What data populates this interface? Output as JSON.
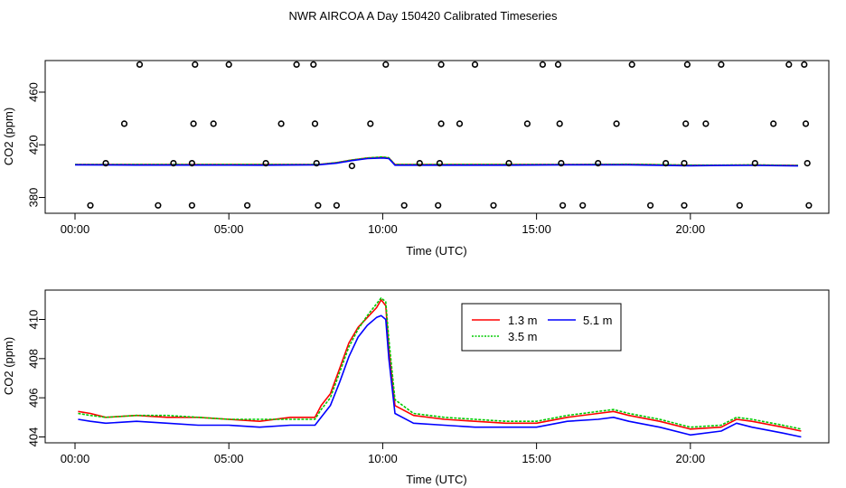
{
  "title": "NWR AIRCOA A  Day 150420  Calibrated Timeseries",
  "colors": {
    "red": "#ff0000",
    "green": "#00cc00",
    "blue": "#0000ff",
    "axis": "#000000"
  },
  "chart_data": [
    {
      "type": "scatter",
      "xlabel": "Time (UTC)",
      "ylabel": "CO2 (ppm)",
      "xlim": [
        0,
        24
      ],
      "ylim": [
        368,
        484
      ],
      "xticks": [
        0,
        5,
        10,
        15,
        20
      ],
      "xtick_labels": [
        "00:00",
        "05:00",
        "10:00",
        "15:00",
        "20:00"
      ],
      "yticks": [
        380,
        420,
        460
      ],
      "ytick_labels": [
        "380",
        "420",
        "460"
      ],
      "series": [
        {
          "color": "red",
          "x": [
            0,
            2,
            4,
            6,
            7.9,
            8.5,
            9.0,
            9.5,
            10.0,
            10.2,
            10.4,
            12,
            14,
            16,
            18,
            20,
            21,
            22,
            23.5
          ],
          "y": [
            405,
            405,
            405,
            405,
            405,
            406.5,
            408.5,
            410,
            410.5,
            410,
            405,
            405,
            405,
            405,
            405.2,
            404.5,
            404.5,
            404.7,
            404.3
          ]
        },
        {
          "color": "green",
          "x": [
            0,
            2,
            4,
            6,
            7.9,
            8.5,
            9.0,
            9.5,
            10.0,
            10.2,
            10.4,
            12,
            14,
            16,
            18,
            20,
            21,
            22,
            23.5
          ],
          "y": [
            405,
            405,
            405,
            405,
            405,
            406.5,
            408.5,
            410,
            410.8,
            410.2,
            405,
            405,
            405,
            405,
            405.3,
            404.6,
            404.6,
            404.8,
            404.3
          ]
        },
        {
          "color": "blue",
          "x": [
            0,
            2,
            4,
            6,
            7.9,
            8.5,
            9.0,
            9.5,
            10.0,
            10.2,
            10.4,
            12,
            14,
            16,
            18,
            20,
            21,
            22,
            23.5
          ],
          "y": [
            404.8,
            404.6,
            404.6,
            404.5,
            404.8,
            406,
            408,
            409.5,
            410,
            409.5,
            404.5,
            404.5,
            404.5,
            404.8,
            404.8,
            404.1,
            404.3,
            404.4,
            404.0
          ]
        }
      ],
      "points": {
        "x": [
          0.5,
          1.0,
          1.6,
          2.1,
          2.7,
          3.2,
          3.8,
          3.8,
          3.85,
          3.9,
          4.5,
          5.0,
          5.6,
          6.2,
          6.7,
          7.2,
          7.75,
          7.8,
          7.85,
          7.9,
          8.5,
          9.0,
          9.6,
          10.1,
          10.7,
          11.2,
          11.8,
          11.85,
          11.9,
          11.9,
          12.5,
          13.0,
          13.6,
          14.1,
          14.7,
          15.2,
          15.7,
          15.75,
          15.8,
          15.85,
          16.5,
          17.0,
          17.6,
          18.1,
          18.7,
          19.2,
          19.8,
          19.8,
          19.85,
          19.9,
          20.5,
          21.0,
          21.6,
          22.1,
          22.7,
          23.2,
          23.7,
          23.75,
          23.8,
          23.85
        ],
        "y": [
          374,
          406,
          436,
          481,
          374,
          406,
          374,
          406,
          436,
          481,
          436,
          481,
          374,
          406,
          436,
          481,
          481,
          436,
          406,
          374,
          374,
          404,
          436,
          481,
          374,
          406,
          374,
          406,
          436,
          481,
          436,
          481,
          374,
          406,
          436,
          481,
          481,
          436,
          406,
          374,
          374,
          406,
          436,
          481,
          374,
          406,
          374,
          406,
          436,
          481,
          436,
          481,
          374,
          406,
          436,
          481,
          481,
          436,
          406,
          374
        ]
      }
    },
    {
      "type": "line",
      "xlabel": "Time (UTC)",
      "ylabel": "CO2 (ppm)",
      "xlim": [
        0,
        24
      ],
      "ylim": [
        403.7,
        411.5
      ],
      "xticks": [
        0,
        5,
        10,
        15,
        20
      ],
      "xtick_labels": [
        "00:00",
        "05:00",
        "10:00",
        "15:00",
        "20:00"
      ],
      "yticks": [
        404,
        406,
        408,
        410
      ],
      "ytick_labels": [
        "404",
        "406",
        "408",
        "410"
      ],
      "legend": {
        "placement": "top-right",
        "entries": [
          "1.3 m",
          "3.5 m",
          "5.1 m"
        ]
      },
      "series": [
        {
          "name": "1.3 m",
          "color": "red",
          "x": [
            0.1,
            0.5,
            1,
            2,
            3,
            4,
            5,
            6,
            7,
            7.8,
            8.0,
            8.3,
            8.6,
            8.9,
            9.2,
            9.5,
            9.8,
            9.95,
            10.1,
            10.2,
            10.4,
            11,
            12,
            13,
            14,
            15,
            16,
            17,
            17.5,
            18,
            19,
            20,
            21,
            21.5,
            22,
            23,
            23.6
          ],
          "y": [
            405.3,
            405.2,
            405.0,
            405.1,
            405.0,
            405.0,
            404.9,
            404.8,
            405.0,
            405.0,
            405.6,
            406.2,
            407.5,
            408.8,
            409.6,
            410.1,
            410.6,
            411.0,
            410.7,
            408.5,
            405.6,
            405.1,
            404.9,
            404.8,
            404.7,
            404.7,
            405.0,
            405.2,
            405.3,
            405.1,
            404.8,
            404.4,
            404.5,
            404.9,
            404.8,
            404.5,
            404.3
          ]
        },
        {
          "name": "3.5 m",
          "color": "green",
          "x": [
            0.1,
            0.5,
            1,
            2,
            3,
            4,
            5,
            6,
            7,
            7.8,
            8.0,
            8.3,
            8.6,
            8.9,
            9.2,
            9.5,
            9.8,
            9.95,
            10.1,
            10.2,
            10.4,
            11,
            12,
            13,
            14,
            15,
            16,
            17,
            17.5,
            18,
            19,
            20,
            21,
            21.5,
            22,
            23,
            23.6
          ],
          "y": [
            405.2,
            405.1,
            405.0,
            405.1,
            405.1,
            405.0,
            404.9,
            404.9,
            404.9,
            404.9,
            405.4,
            406.0,
            407.3,
            408.6,
            409.5,
            410.2,
            410.8,
            411.1,
            410.9,
            409.0,
            405.9,
            405.2,
            405.0,
            404.9,
            404.8,
            404.8,
            405.1,
            405.3,
            405.4,
            405.2,
            404.9,
            404.5,
            404.6,
            405.0,
            404.9,
            404.6,
            404.4
          ]
        },
        {
          "name": "5.1 m",
          "color": "blue",
          "x": [
            0.1,
            0.5,
            1,
            2,
            3,
            4,
            5,
            6,
            7,
            7.8,
            8.0,
            8.3,
            8.6,
            8.9,
            9.2,
            9.5,
            9.8,
            9.95,
            10.1,
            10.2,
            10.4,
            11,
            12,
            13,
            14,
            15,
            16,
            17,
            17.5,
            18,
            19,
            20,
            21,
            21.5,
            22,
            23,
            23.6
          ],
          "y": [
            404.9,
            404.8,
            404.7,
            404.8,
            404.7,
            404.6,
            404.6,
            404.5,
            404.6,
            404.6,
            405.0,
            405.6,
            406.8,
            408.1,
            409.1,
            409.7,
            410.1,
            410.2,
            410.0,
            408.0,
            405.2,
            404.7,
            404.6,
            404.5,
            404.5,
            404.5,
            404.8,
            404.9,
            405.0,
            404.8,
            404.5,
            404.1,
            404.3,
            404.7,
            404.5,
            404.2,
            404.0
          ]
        }
      ]
    }
  ]
}
